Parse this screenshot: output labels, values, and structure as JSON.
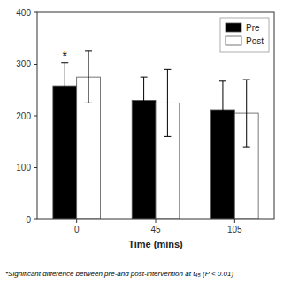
{
  "chart_data": {
    "type": "bar",
    "categories": [
      "0",
      "45",
      "105"
    ],
    "series": [
      {
        "name": "Pre",
        "color": "#000000",
        "values": [
          258,
          230,
          212
        ],
        "errors": [
          45,
          45,
          55
        ]
      },
      {
        "name": "Post",
        "color": "#ffffff",
        "values": [
          275,
          225,
          205
        ],
        "errors": [
          50,
          65,
          65
        ]
      }
    ],
    "xlabel": "Time (mins)",
    "ylim": [
      0,
      400
    ],
    "yticks": [
      0,
      100,
      200,
      300,
      400
    ],
    "legend": "upper right",
    "annotations": [
      {
        "text": "*",
        "x": "0",
        "y": 308
      }
    ],
    "footnote": "*Significant difference between pre-and post-intervention at t₄₅ (P < 0.01)"
  }
}
